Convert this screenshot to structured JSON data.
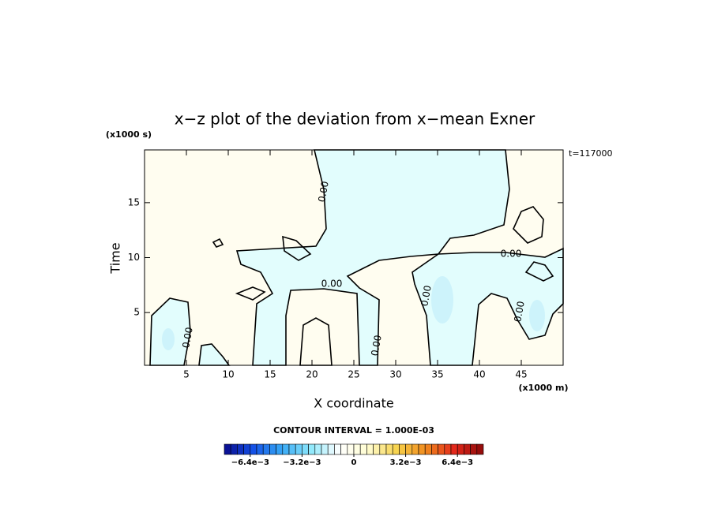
{
  "chart_data": {
    "type": "contour",
    "title": "x−z plot of the deviation from x−mean Exner",
    "x_label": "X coordinate",
    "y_label": "Time",
    "x_unit": "(x1000 m)",
    "y_unit": "(x1000 s)",
    "time_label": "t=117000",
    "xlim": [
      0,
      50
    ],
    "ylim": [
      0.2,
      19.8
    ],
    "xticks": [
      5,
      10,
      15,
      20,
      25,
      30,
      35,
      40,
      45
    ],
    "yticks": [
      5,
      10,
      15
    ],
    "contour_interval": "CONTOUR INTERVAL = 1.000E-03",
    "contour_labels": [
      "0.00",
      "0.00",
      "0.00",
      "0.00",
      "0.00",
      "0.00",
      "0.00"
    ],
    "fill_colors": [
      "#fffdf0",
      "#e2fdfd",
      "#cdf3fb"
    ],
    "colorbar": {
      "lim": [
        -0.008,
        0.008
      ],
      "step": 0.0004,
      "stops": [
        "#0a0a8c",
        "#1450e6",
        "#37a8f5",
        "#8ee8fb",
        "#ffffff",
        "#fffdd0",
        "#f7d24b",
        "#f08a1e",
        "#e3281b",
        "#8c0a0a"
      ],
      "ticks": [
        {
          "value": -0.0064,
          "label": "−6.4e−3"
        },
        {
          "value": -0.0032,
          "label": "−3.2e−3"
        },
        {
          "value": 0,
          "label": "0"
        },
        {
          "value": 0.0032,
          "label": "3.2e−3"
        },
        {
          "value": 0.0064,
          "label": "6.4e−3"
        }
      ]
    }
  }
}
